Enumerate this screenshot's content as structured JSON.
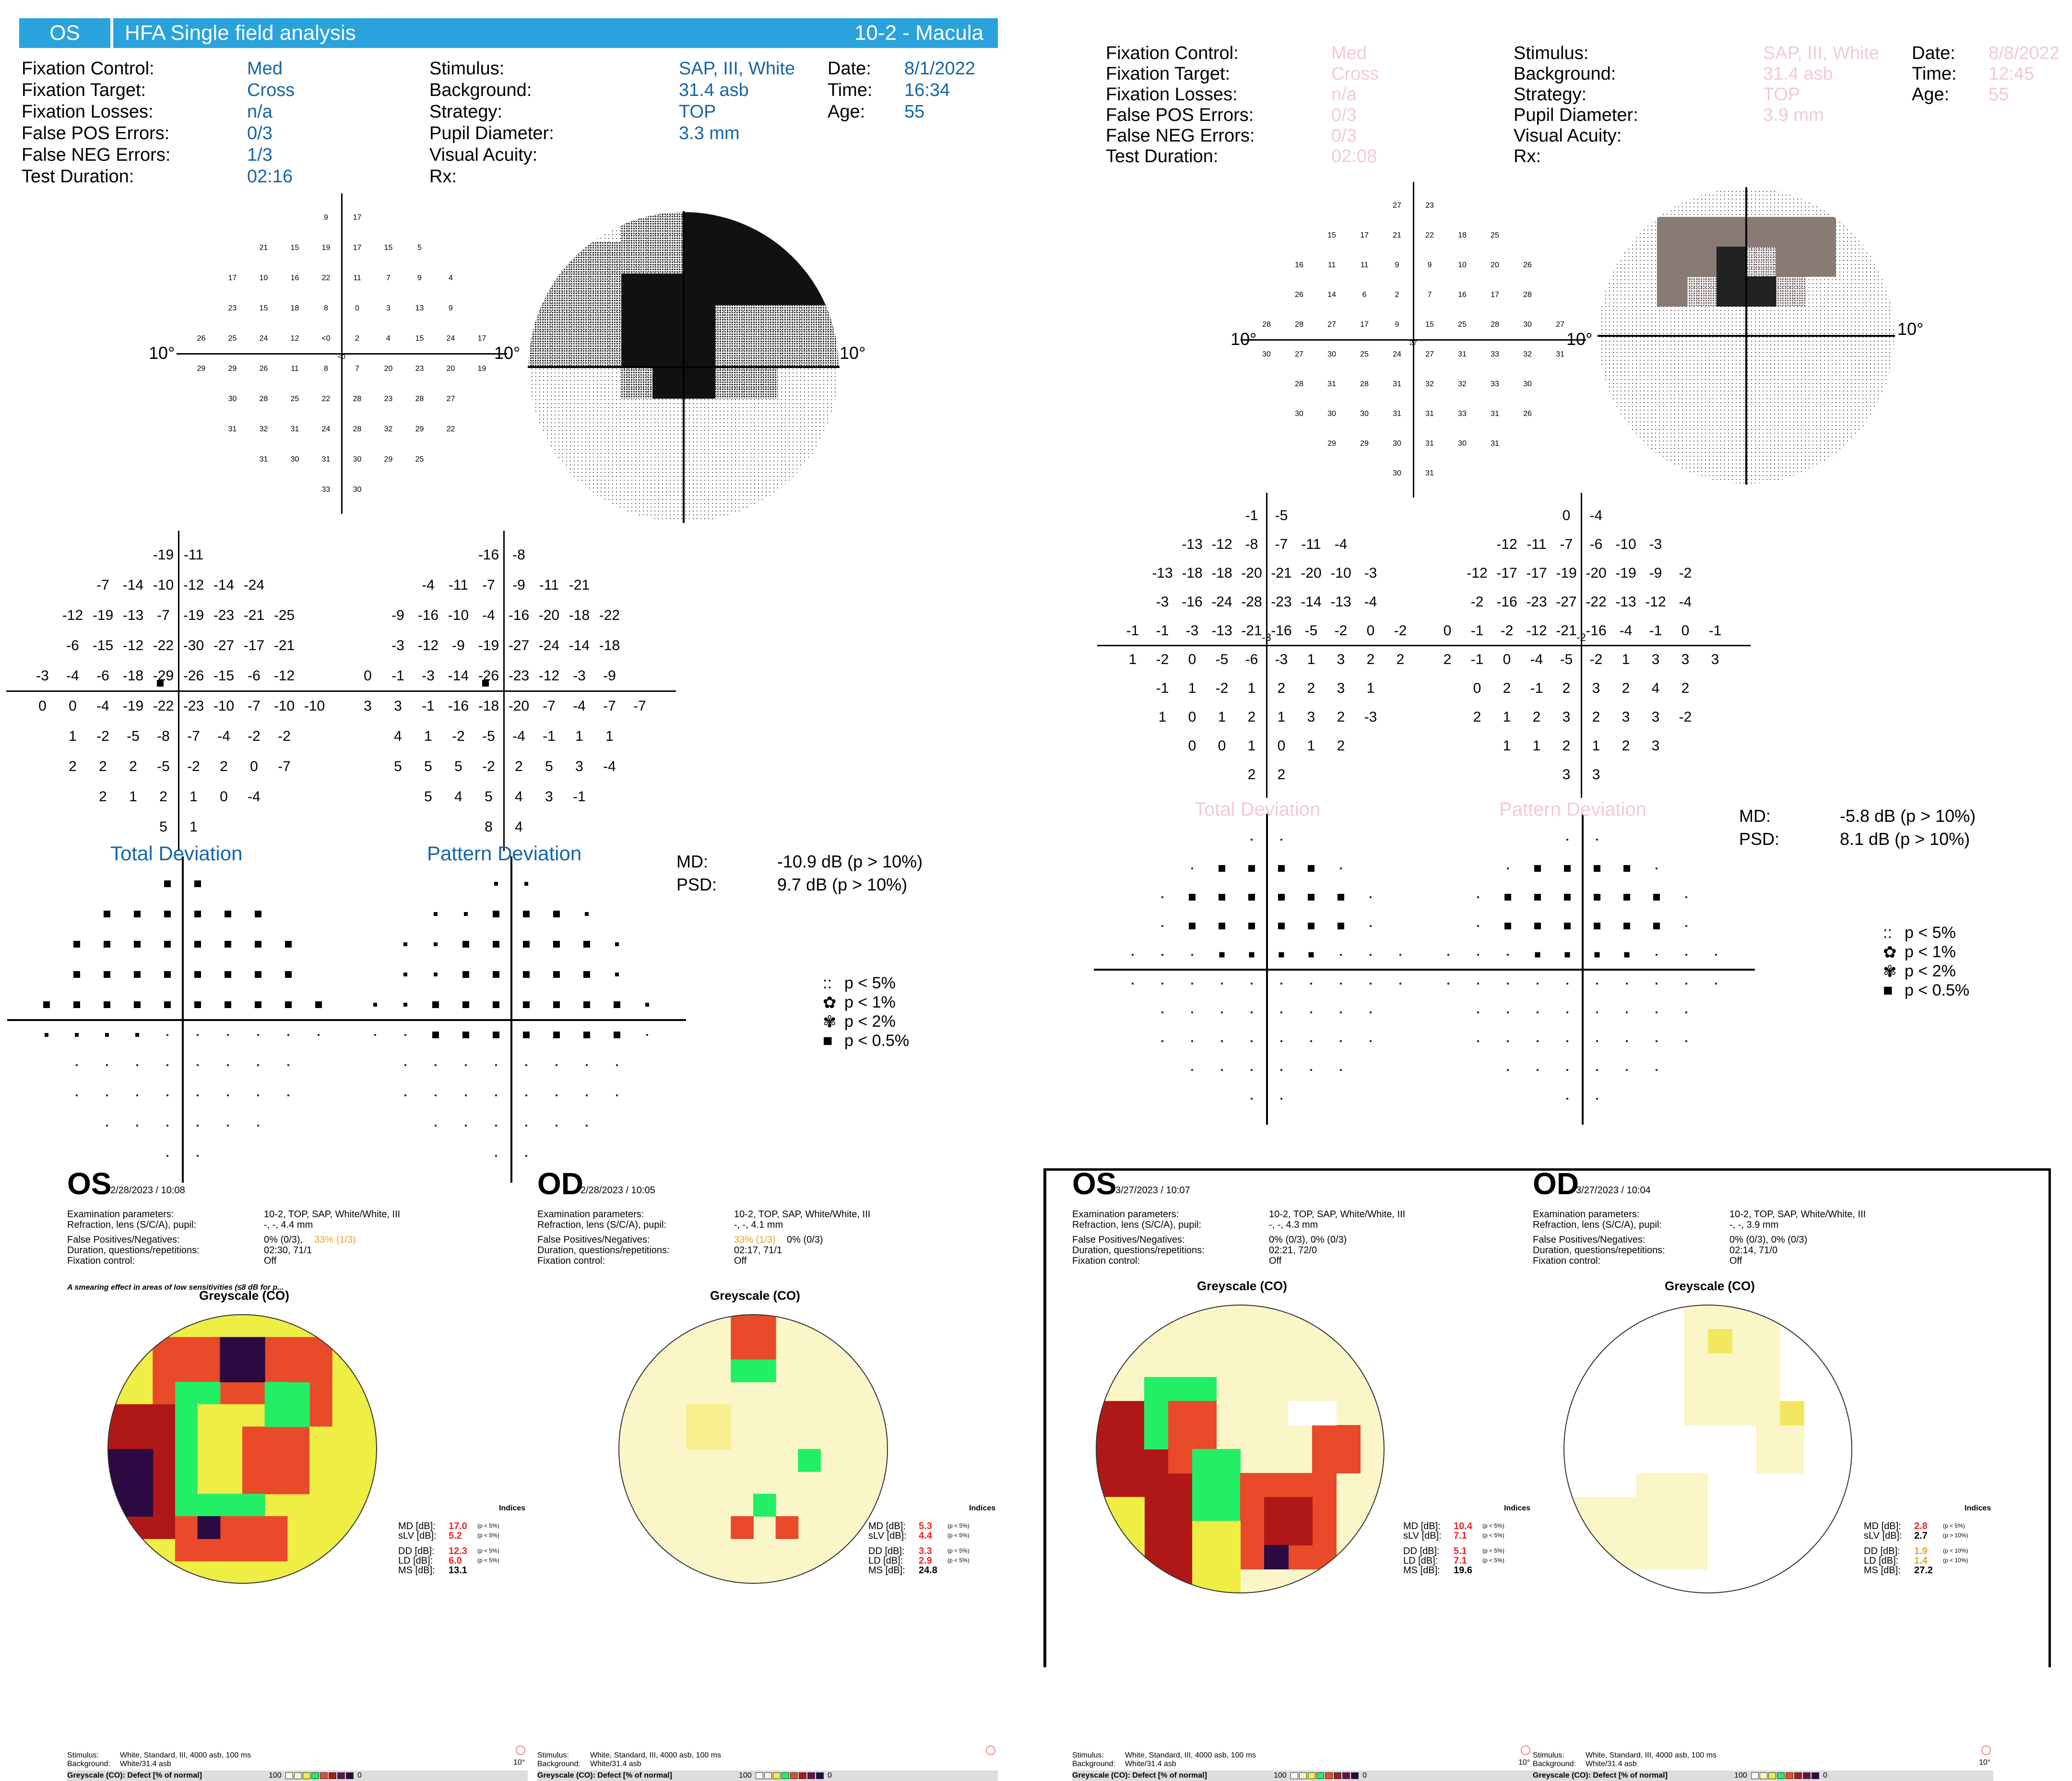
{
  "q1": {
    "header": {
      "eye": "OS",
      "title": "HFA Single field analysis",
      "program": "10-2 - Macula"
    },
    "labels_left": [
      "Fixation Control:",
      "Fixation Target:",
      "Fixation Losses:",
      "False POS Errors:",
      "False NEG Errors:",
      "Test Duration:"
    ],
    "values_left": [
      "Med",
      "Cross",
      "n/a",
      "0/3",
      "1/3",
      "02:16"
    ],
    "labels_mid": [
      "Stimulus:",
      "Background:",
      "Strategy:",
      "Pupil Diameter:",
      "Visual Acuity:",
      "Rx:"
    ],
    "values_mid": [
      "SAP, III, White",
      "31.4 asb",
      "TOP",
      "3.3 mm",
      "",
      ""
    ],
    "labels_right": [
      "Date:",
      "Time:",
      "Age:"
    ],
    "values_right": [
      "8/1/2022",
      "16:34",
      "55"
    ],
    "deg_left": "10°",
    "deg_mid": "10°",
    "deg_right": "10°",
    "center_val": "<0",
    "sens_rows": [
      [
        "9",
        "17"
      ],
      [
        "21",
        "15",
        "19",
        "17",
        "15",
        "5"
      ],
      [
        "17",
        "10",
        "16",
        "22",
        "11",
        "7",
        "9",
        "4"
      ],
      [
        "23",
        "15",
        "18",
        "8",
        "0",
        "3",
        "13",
        "9"
      ],
      [
        "26",
        "25",
        "24",
        "12",
        "<0",
        "2",
        "4",
        "15",
        "24",
        "17"
      ],
      [
        "29",
        "29",
        "26",
        "11",
        "8",
        "7",
        "20",
        "23",
        "20",
        "19"
      ],
      [
        "30",
        "28",
        "25",
        "22",
        "28",
        "23",
        "28",
        "27"
      ],
      [
        "31",
        "32",
        "31",
        "24",
        "28",
        "32",
        "29",
        "22"
      ],
      [
        "31",
        "30",
        "31",
        "30",
        "29",
        "25"
      ],
      [
        "33",
        "30"
      ]
    ],
    "td_rows": [
      [
        "-19",
        "-11"
      ],
      [
        "-7",
        "-14",
        "-10",
        "-12",
        "-14",
        "-24"
      ],
      [
        "-12",
        "-19",
        "-13",
        "-7",
        "-19",
        "-23",
        "-21",
        "-25"
      ],
      [
        "-6",
        "-15",
        "-12",
        "-22",
        "-30",
        "-27",
        "-17",
        "-21"
      ],
      [
        "-3",
        "-4",
        "-6",
        "-18",
        "-29",
        "-26",
        "-15",
        "-6",
        "-12"
      ],
      [
        "0",
        "0",
        "-4",
        "-19",
        "-22",
        "-23",
        "-10",
        "-7",
        "-10",
        "-10"
      ],
      [
        "1",
        "-2",
        "-5",
        "-8",
        "-7",
        "-4",
        "-2",
        "-2"
      ],
      [
        "2",
        "2",
        "2",
        "-5",
        "-2",
        "2",
        "0",
        "-7"
      ],
      [
        "2",
        "1",
        "2",
        "1",
        "0",
        "-4"
      ],
      [
        "5",
        "1"
      ]
    ],
    "pd_rows": [
      [
        "-16",
        "-8"
      ],
      [
        "-4",
        "-11",
        "-7",
        "-9",
        "-11",
        "-21"
      ],
      [
        "-9",
        "-16",
        "-10",
        "-4",
        "-16",
        "-20",
        "-18",
        "-22"
      ],
      [
        "-3",
        "-12",
        "-9",
        "-19",
        "-27",
        "-24",
        "-14",
        "-18"
      ],
      [
        "0",
        "-1",
        "-3",
        "-14",
        "-26",
        "-23",
        "-12",
        "-3",
        "-9"
      ],
      [
        "3",
        "3",
        "-1",
        "-16",
        "-18",
        "-20",
        "-7",
        "-4",
        "-7",
        "-7"
      ],
      [
        "4",
        "1",
        "-2",
        "-5",
        "-4",
        "-1",
        "1",
        "1"
      ],
      [
        "5",
        "5",
        "5",
        "-2",
        "2",
        "5",
        "3",
        "-4"
      ],
      [
        "5",
        "4",
        "5",
        "4",
        "3",
        "-1"
      ],
      [
        "8",
        "4"
      ]
    ],
    "td_title": "Total Deviation",
    "pd_title": "Pattern Deviation",
    "md_label": "MD:",
    "md_value": "-10.9 dB (p > 10%)",
    "psd_label": "PSD:",
    "psd_value": "9.7 dB   (p > 10%)",
    "legend": [
      "p < 5%",
      "p < 1%",
      "p < 2%",
      "p < 0.5%"
    ],
    "legend_symbols": [
      ":: ",
      "✿",
      "✾",
      "■"
    ]
  },
  "q2": {
    "labels_left": [
      "Fixation Control:",
      "Fixation Target:",
      "Fixation Losses:",
      "False POS Errors:",
      "False NEG Errors:",
      "Test Duration:"
    ],
    "values_left": [
      "Med",
      "Cross",
      "n/a",
      "0/3",
      "0/3",
      "02:08"
    ],
    "labels_mid": [
      "Stimulus:",
      "Background:",
      "Strategy:",
      "Pupil Diameter:",
      "Visual Acuity:",
      "Rx:"
    ],
    "values_mid": [
      "SAP, III, White",
      "31.4 asb",
      "TOP",
      "3.9 mm",
      "",
      ""
    ],
    "labels_right": [
      "Date:",
      "Time:",
      "Age:"
    ],
    "values_right": [
      "8/8/2022",
      "12:45",
      "55"
    ],
    "deg_left": "10°",
    "deg_mid": "10°",
    "deg_right": "10°",
    "center_val": "27",
    "sens_rows": [
      [
        "27",
        "23"
      ],
      [
        "15",
        "17",
        "21",
        "22",
        "18",
        "25"
      ],
      [
        "16",
        "11",
        "11",
        "9",
        "9",
        "10",
        "20",
        "26"
      ],
      [
        "26",
        "14",
        "6",
        "2",
        "7",
        "16",
        "17",
        "28"
      ],
      [
        "28",
        "28",
        "27",
        "17",
        "9",
        "15",
        "25",
        "28",
        "30",
        "27"
      ],
      [
        "30",
        "27",
        "30",
        "25",
        "24",
        "27",
        "31",
        "33",
        "32",
        "31"
      ],
      [
        "28",
        "31",
        "28",
        "31",
        "32",
        "32",
        "33",
        "30"
      ],
      [
        "30",
        "30",
        "30",
        "31",
        "31",
        "33",
        "31",
        "26"
      ],
      [
        "29",
        "29",
        "30",
        "31",
        "30",
        "31"
      ],
      [
        "30",
        "31"
      ]
    ],
    "td_rows": [
      [
        "-1",
        "-5"
      ],
      [
        "-13",
        "-12",
        "-8",
        "-7",
        "-11",
        "-4"
      ],
      [
        "-13",
        "-18",
        "-18",
        "-20",
        "-21",
        "-20",
        "-10",
        "-3"
      ],
      [
        "-3",
        "-16",
        "-24",
        "-28",
        "-23",
        "-14",
        "-13",
        "-4"
      ],
      [
        "-1",
        "-1",
        "-3",
        "-13",
        "-21",
        "-16",
        "-5",
        "-2",
        "0",
        "-2"
      ],
      [
        "1",
        "-2",
        "0",
        "-5",
        "-6",
        "-3",
        "1",
        "3",
        "2",
        "2"
      ],
      [
        "-1",
        "1",
        "-2",
        "1",
        "2",
        "2",
        "3",
        "1"
      ],
      [
        "1",
        "0",
        "1",
        "2",
        "1",
        "3",
        "2",
        "-3"
      ],
      [
        "0",
        "0",
        "1",
        "0",
        "1",
        "2"
      ],
      [
        "2",
        "2"
      ]
    ],
    "pd_rows": [
      [
        "0",
        "-4"
      ],
      [
        "-12",
        "-11",
        "-7",
        "-6",
        "-10",
        "-3"
      ],
      [
        "-12",
        "-17",
        "-17",
        "-19",
        "-20",
        "-19",
        "-9",
        "-2"
      ],
      [
        "-2",
        "-16",
        "-23",
        "-27",
        "-22",
        "-13",
        "-12",
        "-4"
      ],
      [
        "0",
        "-1",
        "-2",
        "-12",
        "-21",
        "-16",
        "-4",
        "-1",
        "0",
        "-1"
      ],
      [
        "2",
        "-1",
        "0",
        "-4",
        "-5",
        "-2",
        "1",
        "3",
        "3",
        "3"
      ],
      [
        "0",
        "2",
        "-1",
        "2",
        "3",
        "2",
        "4",
        "2"
      ],
      [
        "2",
        "1",
        "2",
        "3",
        "2",
        "3",
        "3",
        "-2"
      ],
      [
        "1",
        "1",
        "2",
        "1",
        "2",
        "3"
      ],
      [
        "3",
        "3"
      ]
    ],
    "td_center": "-3",
    "pd_center": "-2",
    "td_title": "Total Deviation",
    "pd_title": "Pattern Deviation",
    "md_label": "MD:",
    "md_value": "-5.8 dB (p > 10%)",
    "psd_label": "PSD:",
    "psd_value": "8.1 dB  (p > 10%)",
    "legend": [
      "p < 5%",
      "p < 1%",
      "p < 2%",
      "p < 0.5%"
    ],
    "legend_symbols": [
      ":: ",
      "✿",
      "✾",
      "■"
    ]
  },
  "q3": {
    "os": {
      "eye": "OS",
      "datetime": "2/28/2023 / 10:08",
      "param_labels": [
        "Examination parameters:",
        "Refraction, lens (S/C/A), pupil:",
        "False Positives/Negatives:",
        "Duration, questions/repetitions:",
        "Fixation control:"
      ],
      "param_values": [
        "10-2, TOP, SAP, White/White, III",
        "-, -, 4.4 mm",
        "0% (0/3), ",
        "02:30, 71/1",
        "Off"
      ],
      "fp_warn": "33% (1/3)",
      "warning": "A smearing effect in areas of low sensitivities (≤8 dB for p...",
      "gs_title": "Greyscale (CO)",
      "indices_title": "Indices",
      "idx": [
        {
          "label": "MD [dB]:",
          "value": "17.0",
          "p": "(p <  5%)"
        },
        {
          "label": "sLV [dB]:",
          "value": "5.2",
          "p": "(p <  5%)"
        },
        {
          "label": "DD [dB]:",
          "value": "12.3",
          "p": "(p <  5%)"
        },
        {
          "label": "LD [dB]:",
          "value": "6.0",
          "p": "(p <  5%)"
        },
        {
          "label": "MS [dB]:",
          "value": "13.1",
          "p": ""
        }
      ],
      "stim_label": "Stimulus:",
      "stim_value": "White, Standard, III, 4000 asb, 100 ms",
      "bg_label": "Background:",
      "bg_value": "White/31.4 asb",
      "gs_label": "Greyscale (CO): Defect [% of normal]",
      "scale_lo": "100",
      "scale_hi": "0",
      "deg": "10°"
    },
    "od": {
      "eye": "OD",
      "datetime": "2/28/2023 / 10:05",
      "param_labels": [
        "Examination parameters:",
        "Refraction, lens (S/C/A), pupil:",
        "False Positives/Negatives:",
        "Duration, questions/repetitions:",
        "Fixation control:"
      ],
      "param_values": [
        "10-2, TOP, SAP, White/White, III",
        "-, -, 4.1 mm",
        " 0% (0/3)",
        "02:17, 71/1",
        "Off"
      ],
      "fp_warn": "33% (1/3)",
      "gs_title": "Greyscale (CO)",
      "indices_title": "Indices",
      "idx": [
        {
          "label": "MD [dB]:",
          "value": "5.3",
          "p": "(p <  5%)"
        },
        {
          "label": "sLV [dB]:",
          "value": "4.4",
          "p": "(p <  5%)"
        },
        {
          "label": "DD [dB]:",
          "value": "3.3",
          "p": "(p <  5%)"
        },
        {
          "label": "LD [dB]:",
          "value": "2.9",
          "p": "(p <  5%)"
        },
        {
          "label": "MS [dB]:",
          "value": "24.8",
          "p": ""
        }
      ],
      "stim_label": "Stimulus:",
      "stim_value": "White, Standard, III, 4000 asb, 100 ms",
      "bg_label": "Background:",
      "bg_value": "White/31.4 asb",
      "gs_label": "Greyscale (CO): Defect [% of normal]",
      "scale_lo": "100",
      "scale_hi": "0"
    }
  },
  "q4": {
    "os": {
      "eye": "OS",
      "datetime": "3/27/2023 / 10:07",
      "param_labels": [
        "Examination parameters:",
        "Refraction, lens (S/C/A), pupil:",
        "False Positives/Negatives:",
        "Duration, questions/repetitions:",
        "Fixation control:"
      ],
      "param_values": [
        "10-2, TOP, SAP, White/White, III",
        "-, -, 4.3 mm",
        "0% (0/3), 0% (0/3)",
        "02:21, 72/0",
        "Off"
      ],
      "gs_title": "Greyscale (CO)",
      "indices_title": "Indices",
      "idx": [
        {
          "label": "MD [dB]:",
          "value": "10.4",
          "p": "(p <  5%)"
        },
        {
          "label": "sLV [dB]:",
          "value": "7.1",
          "p": "(p <  5%)"
        },
        {
          "label": "DD [dB]:",
          "value": "5.1",
          "p": "(p <  5%)"
        },
        {
          "label": "LD [dB]:",
          "value": "7.1",
          "p": "(p <  5%)"
        },
        {
          "label": "MS [dB]:",
          "value": "19.6",
          "p": ""
        }
      ],
      "stim_label": "Stimulus:",
      "stim_value": "White, Standard, III, 4000 asb, 100 ms",
      "bg_label": "Background:",
      "bg_value": "White/31.4 asb",
      "gs_label": "Greyscale (CO): Defect [% of normal]",
      "scale_lo": "100",
      "scale_hi": "0",
      "deg": "10°"
    },
    "od": {
      "eye": "OD",
      "datetime": "3/27/2023 / 10:04",
      "param_labels": [
        "Examination parameters:",
        "Refraction, lens (S/C/A), pupil:",
        "False Positives/Negatives:",
        "Duration, questions/repetitions:",
        "Fixation control:"
      ],
      "param_values": [
        "10-2, TOP, SAP, White/White, III",
        "-, -, 3.9 mm",
        "0% (0/3), 0% (0/3)",
        "02:14, 71/0",
        "Off"
      ],
      "gs_title": "Greyscale (CO)",
      "indices_title": "Indices",
      "idx": [
        {
          "label": "MD [dB]:",
          "value": "2.8",
          "p": "(p <  5%)"
        },
        {
          "label": "sLV [dB]:",
          "value": "2.7",
          "p": "(p > 10%)"
        },
        {
          "label": "DD [dB]:",
          "value": "1.9",
          "p": "(p < 10%)"
        },
        {
          "label": "LD [dB]:",
          "value": "1.4",
          "p": "(p < 10%)"
        },
        {
          "label": "MS [dB]:",
          "value": "27.2",
          "p": ""
        }
      ],
      "stim_label": "Stimulus:",
      "stim_value": "White, Standard, III, 4000 asb, 100 ms",
      "bg_label": "Background:",
      "bg_value": "White/31.4 asb",
      "gs_label": "Greyscale (CO): Defect [% of normal]",
      "scale_lo": "100",
      "scale_hi": "0",
      "deg": "10°"
    }
  },
  "colors": {
    "header": "#2aa3dd",
    "value_blue": "#1565a8",
    "faded_pink": "#f4c9d4",
    "red": "#e22222",
    "orange": "#f0a020",
    "green": "#22ee66",
    "yellow": "#eeee44",
    "darkred": "#b01818",
    "purple": "#2a0a40",
    "paleyellow": "#fbf6c8"
  }
}
